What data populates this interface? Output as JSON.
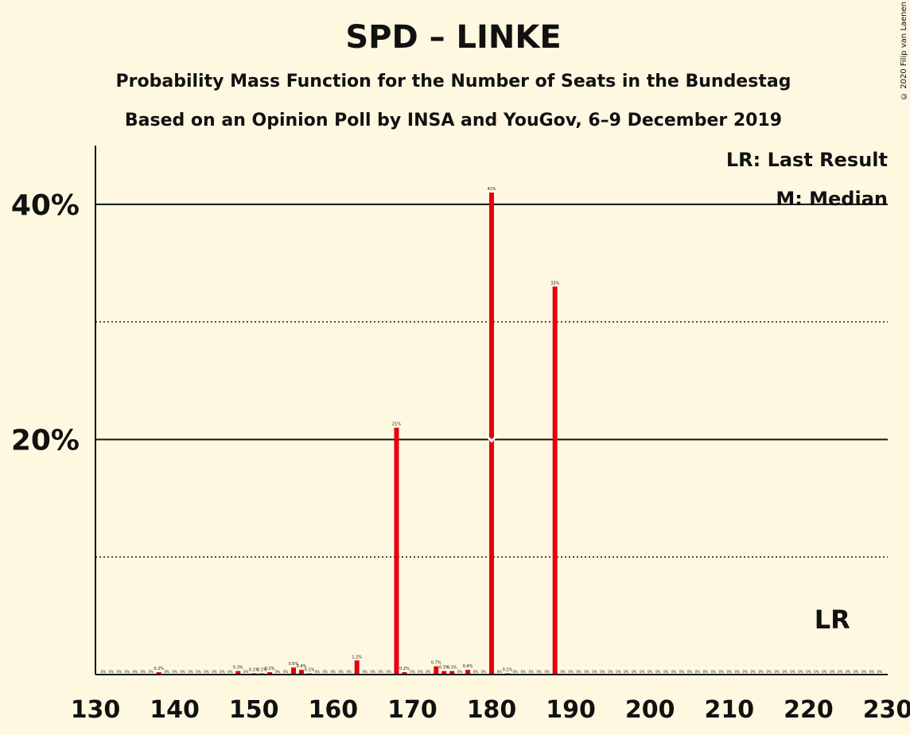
{
  "title": "SPD – LINKE",
  "subtitle": "Probability Mass Function for the Number of Seats in the Bundestag",
  "subtitle2": "Based on an Opinion Poll by INSA and YouGov, 6–9 December 2019",
  "copyright": "© 2020 Filip van Laenen",
  "legend": {
    "last_result": "LR: Last Result",
    "median": "M: Median"
  },
  "markers": {
    "last_result_label": "LR",
    "last_result_seat": 223,
    "median_label": "M",
    "median_seat": 180
  },
  "colors": {
    "bar": "#E3000F",
    "background": "#FFF8E1",
    "axis": "#111111"
  },
  "chart_data": {
    "type": "bar",
    "xlim": [
      130,
      230
    ],
    "ylim": [
      0,
      45
    ],
    "x_ticks": [
      130,
      140,
      150,
      160,
      170,
      180,
      190,
      200,
      210,
      220,
      230
    ],
    "y_ticks_major": [
      {
        "value": 20,
        "label": "20%"
      },
      {
        "value": 40,
        "label": "40%"
      }
    ],
    "y_gridlines_dotted": [
      10,
      30
    ],
    "bars": [
      {
        "x": 138,
        "value": 0.2,
        "label": "0.2%"
      },
      {
        "x": 148,
        "value": 0.3,
        "label": "0.3%"
      },
      {
        "x": 150,
        "value": 0.1,
        "label": "0.1%"
      },
      {
        "x": 151,
        "value": 0.1,
        "label": "0.1%"
      },
      {
        "x": 152,
        "value": 0.2,
        "label": "0.2%"
      },
      {
        "x": 155,
        "value": 0.6,
        "label": "0.6%"
      },
      {
        "x": 156,
        "value": 0.4,
        "label": "0.4%"
      },
      {
        "x": 157,
        "value": 0.1,
        "label": "0.1%"
      },
      {
        "x": 163,
        "value": 1.2,
        "label": "1.2%"
      },
      {
        "x": 168,
        "value": 21,
        "label": "21%"
      },
      {
        "x": 169,
        "value": 0.2,
        "label": "0.2%"
      },
      {
        "x": 173,
        "value": 0.7,
        "label": "0.7%"
      },
      {
        "x": 174,
        "value": 0.3,
        "label": "0.3%"
      },
      {
        "x": 175,
        "value": 0.3,
        "label": "0.3%"
      },
      {
        "x": 177,
        "value": 0.4,
        "label": "0.4%"
      },
      {
        "x": 180,
        "value": 41,
        "label": "41%"
      },
      {
        "x": 182,
        "value": 0.1,
        "label": "0.1%"
      },
      {
        "x": 188,
        "value": 33,
        "label": "33%"
      }
    ]
  }
}
